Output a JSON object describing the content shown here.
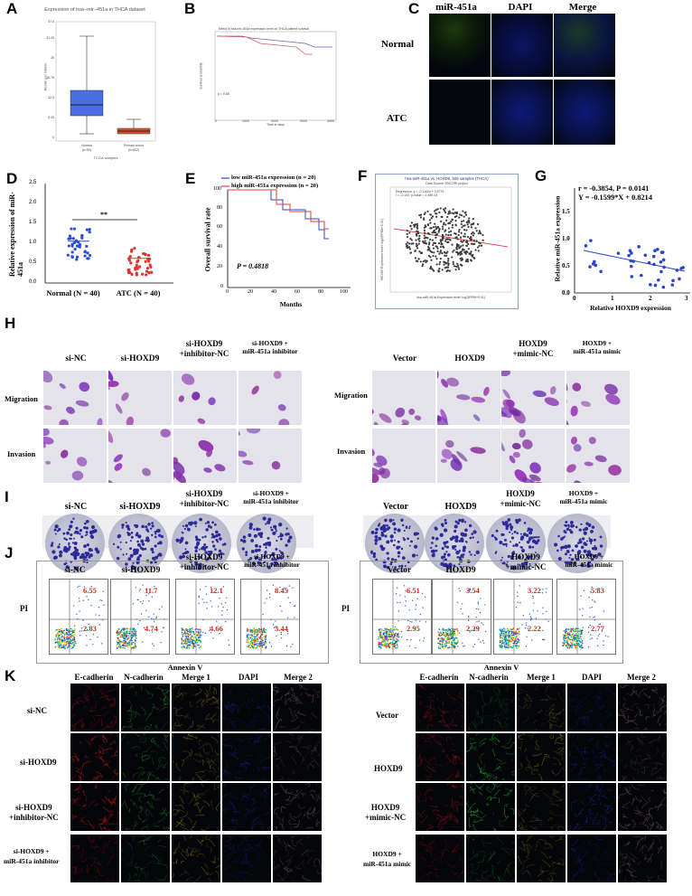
{
  "panels": {
    "A": "A",
    "B": "B",
    "C": "C",
    "D": "D",
    "E": "E",
    "F": "F",
    "G": "G",
    "H": "H",
    "I": "I",
    "J": "J",
    "K": "K"
  },
  "panelA": {
    "title": "Expression of hsa−mir−451a in THCA dataset",
    "ylabel": "Reads per million",
    "xlabel": "TCGA samples",
    "yticks": [
      "0",
      "6.25",
      "12.5",
      "18.75",
      "25",
      "31.25",
      "37.5"
    ],
    "groups": [
      {
        "name": "Normal",
        "n": "(n=59)"
      },
      {
        "name": "Primary tumor",
        "n": "(n=502)"
      }
    ],
    "box_colors": {
      "normal": "#4a6ee0",
      "tumor": "#d9512d"
    }
  },
  "panelB": {
    "title": "Effect of hsa-mir-451a expression level on THCA patient survival",
    "pvalue": "p = 0.68",
    "ylabel": "Survival probability",
    "xlabel": "Time in days",
    "xticks": [
      "0",
      "1000",
      "2000",
      "3000",
      "4000"
    ]
  },
  "panelC": {
    "col_headers": [
      "miR-451a",
      "DAPI",
      "Merge"
    ],
    "row_labels": [
      "Normal",
      "ATC"
    ]
  },
  "panelD": {
    "ylabel": "Relative expression of miR-451a",
    "yticks": [
      "0.0",
      "0.5",
      "1.0",
      "1.5",
      "2.0",
      "2.5"
    ],
    "groups": [
      "Normal (N = 40)",
      "ATC (N = 40)"
    ],
    "sig": "**",
    "colors": {
      "normal": "#2c4bd6",
      "atc": "#e03232"
    }
  },
  "panelE": {
    "legend": [
      {
        "label": "low miR-451a expression (n = 20)",
        "color": "#2b46c8"
      },
      {
        "label": "high miR-451a expression (n = 20)",
        "color": "#e0413a"
      }
    ],
    "ylabel": "Overall survival rate",
    "xlabel": "Months",
    "pvalue": "P = 0.4818",
    "xticks": [
      "0",
      "20",
      "40",
      "60",
      "80",
      "100"
    ],
    "yticks": [
      "0",
      "20",
      "40",
      "60",
      "80",
      "100"
    ]
  },
  "panelF": {
    "title": "hsa-miR-451a vs. HOXD9, 509 samples (THCA)",
    "subtitle": "Data Source: ENCORI project",
    "legend1": "Regression: y = -0.1162x + 0.6776",
    "legend2": "r = -0.133, p-value = 2.48e-03",
    "xlabel": "hsa-miR-451a Expression level: log2(RPM+0.01)",
    "ylabel": "HOXD9 Expression level: log2(FPKM+0.01)"
  },
  "panelG": {
    "stat1": "r = -0.3854, P = 0.0141",
    "stat2": "Y = -0.1599*X + 0.8214",
    "ylabel": "Relative miR-451a expression",
    "xlabel": "Relative HOXD9 expression",
    "xticks": [
      "0",
      "1",
      "2",
      "3"
    ],
    "yticks": [
      "0.0",
      "0.5",
      "1.0",
      "1.5"
    ]
  },
  "panelH": {
    "left_headers": [
      "si-NC",
      "si-HOXD9",
      "si-HOXD9\n+inhibitor-NC",
      "si-HOXD9 +\nmiR-451a inhibitor"
    ],
    "right_headers": [
      "Vector",
      "HOXD9",
      "HOXD9\n+mimic-NC",
      "HOXD9 +\nmiR-451a mimic"
    ],
    "row_labels": [
      "Migration",
      "Invasion"
    ]
  },
  "panelI": {
    "left_headers": [
      "si-NC",
      "si-HOXD9",
      "si-HOXD9\n+inhibitor-NC",
      "si-HOXD9 +\nmiR-451a inhibitor"
    ],
    "right_headers": [
      "Vector",
      "HOXD9",
      "HOXD9\n+mimic-NC",
      "HOXD9 +\nmiR-451a mimic"
    ]
  },
  "panelJ": {
    "left_headers": [
      "si-NC",
      "si-HOXD9",
      "si-HOXD9\n+inhibitor-NC",
      "si-HOXD9 +\nmiR-451a inhibitor"
    ],
    "right_headers": [
      "Vector",
      "HOXD9",
      "HOXD9\n+mimic-NC",
      "HOXD9 +\nmiR-451a mimic"
    ],
    "ylabel": "PI",
    "xlabel": "Annexin V",
    "left_values": [
      {
        "upper": "6.55",
        "lower": "2.83"
      },
      {
        "upper": "11.7",
        "lower": "4.74"
      },
      {
        "upper": "12.1",
        "lower": "4.66"
      },
      {
        "upper": "8.45",
        "lower": "3.44"
      }
    ],
    "right_values": [
      {
        "upper": "6.51",
        "lower": "2.95"
      },
      {
        "upper": "3.54",
        "lower": "2.29"
      },
      {
        "upper": "3.22",
        "lower": "2.22"
      },
      {
        "upper": "5.83",
        "lower": "2.77"
      }
    ]
  },
  "panelK": {
    "col_headers": [
      "E-cadherin",
      "N-cadherin",
      "Merge 1",
      "DAPI",
      "Merge 2"
    ],
    "left_rows": [
      "si-NC",
      "si-HOXD9",
      "si-HOXD9\n+inhibitor-NC",
      "si-HOXD9 +\nmiR-451a inhibitor"
    ],
    "right_rows": [
      "Vector",
      "HOXD9",
      "HOXD9\n+mimic-NC",
      "HOXD9 +\nmiR-451a mimic"
    ]
  }
}
